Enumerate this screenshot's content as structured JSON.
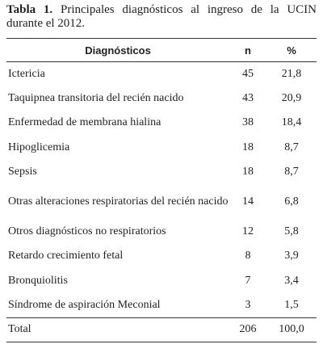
{
  "caption": {
    "label": "Tabla 1.",
    "text": "Principales diagnósticos al ingreso de la UCIN durante el 2012."
  },
  "table": {
    "header": [
      "Diagnósticos",
      "n",
      "%"
    ],
    "rows": [
      [
        "Ictericia",
        45,
        "21,8"
      ],
      [
        "Taquipnea transitoria del recién nacido",
        43,
        "20,9"
      ],
      [
        "Enfermedad de membrana hialina",
        38,
        "18,4"
      ],
      [
        "Hipoglicemia",
        18,
        "8,7"
      ],
      [
        "Sepsis",
        18,
        "8,7"
      ],
      [
        "Otras alteraciones respiratorias del recién nacido",
        14,
        "6,8"
      ],
      [
        "Otros diagnósticos no respiratorios",
        12,
        "5,8"
      ],
      [
        "Retardo crecimiento fetal",
        8,
        "3,9"
      ],
      [
        "Bronquiolitis",
        7,
        "3,4"
      ],
      [
        "Síndrome de aspiración Meconial",
        3,
        "1,5"
      ]
    ],
    "total": [
      "Total",
      206,
      "100,0"
    ]
  }
}
